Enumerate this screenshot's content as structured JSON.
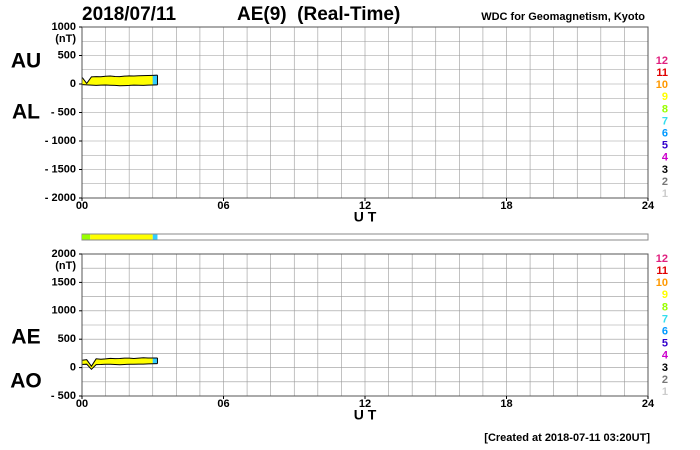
{
  "header": {
    "date": "2018/07/11",
    "title": "AE(9)  (Real-Time)",
    "source": "WDC for Geomagnetism, Kyoto"
  },
  "footer": "[Created at 2018-07-11 03:20UT]",
  "coverage": [
    {
      "from": 0,
      "to": 0.35,
      "color": "#99ff00"
    },
    {
      "from": 0.35,
      "to": 3.0,
      "color": "#ffff00"
    },
    {
      "from": 3.0,
      "to": 3.2,
      "color": "#33ccff"
    }
  ],
  "chart_data": [
    {
      "type": "line",
      "x_label": "U T",
      "y_unit": "(nT)",
      "x": [
        0,
        0.2,
        0.4,
        0.6,
        0.8,
        1.0,
        1.2,
        1.4,
        1.6,
        1.8,
        2.0,
        2.2,
        2.4,
        2.6,
        2.8,
        3.0,
        3.2
      ],
      "series": [
        {
          "name": "AU",
          "color": "#000000",
          "values": [
            120,
            10,
            125,
            130,
            128,
            135,
            140,
            132,
            130,
            138,
            142,
            140,
            145,
            148,
            150,
            152,
            155
          ]
        },
        {
          "name": "AL",
          "color": "#000000",
          "values": [
            -10,
            -15,
            -20,
            -25,
            -20,
            -18,
            -22,
            -25,
            -30,
            -28,
            -25,
            -20,
            -22,
            -25,
            -20,
            -18,
            -15
          ]
        }
      ],
      "fill_bands": [
        {
          "from": 0,
          "to": 3.0,
          "color": "#ffff00"
        },
        {
          "from": 3.0,
          "to": 3.2,
          "color": "#33ccff"
        }
      ],
      "xlim": [
        0,
        24
      ],
      "xticks": [
        {
          "value": 0,
          "label": "00"
        },
        {
          "value": 6,
          "label": "06"
        },
        12,
        18,
        24
      ],
      "ylim": [
        -2000,
        1000
      ],
      "yticks": [
        1000,
        500,
        0,
        {
          "value": -500,
          "label": "- 500"
        },
        {
          "value": -1000,
          "label": "- 1000"
        },
        {
          "value": -1500,
          "label": "- 1500"
        },
        {
          "value": -2000,
          "label": "- 2000"
        }
      ],
      "grid": true,
      "x_grid_step": 1,
      "y_grid_step": 250,
      "station_legend": [
        {
          "label": "12",
          "color": "#e0207f"
        },
        {
          "label": "11",
          "color": "#e00000"
        },
        {
          "label": "10",
          "color": "#ff9900"
        },
        {
          "label": "9",
          "color": "#ffff00"
        },
        {
          "label": "8",
          "color": "#99ff00"
        },
        {
          "label": "7",
          "color": "#33ddee"
        },
        {
          "label": "6",
          "color": "#0099ff"
        },
        {
          "label": "5",
          "color": "#3300cc"
        },
        {
          "label": "4",
          "color": "#cc00cc"
        },
        {
          "label": "3",
          "color": "#000000"
        },
        {
          "label": "2",
          "color": "#777777"
        },
        {
          "label": "1",
          "color": "#cccccc"
        }
      ]
    },
    {
      "type": "line",
      "x_label": "U T",
      "y_unit": "(nT)",
      "x": [
        0,
        0.2,
        0.4,
        0.6,
        0.8,
        1.0,
        1.2,
        1.4,
        1.6,
        1.8,
        2.0,
        2.2,
        2.4,
        2.6,
        2.8,
        3.0,
        3.2
      ],
      "series": [
        {
          "name": "AE",
          "color": "#000000",
          "values": [
            130,
            140,
            25,
            155,
            148,
            153,
            162,
            157,
            160,
            166,
            167,
            160,
            167,
            173,
            170,
            170,
            170
          ]
        },
        {
          "name": "AO",
          "color": "#000000",
          "values": [
            55,
            60,
            -30,
            53,
            54,
            59,
            59,
            54,
            50,
            55,
            59,
            60,
            62,
            62,
            65,
            67,
            70
          ]
        }
      ],
      "fill_bands": [
        {
          "from": 0,
          "to": 3.0,
          "color": "#ffff00"
        },
        {
          "from": 3.0,
          "to": 3.2,
          "color": "#33ccff"
        }
      ],
      "xlim": [
        0,
        24
      ],
      "xticks": [
        {
          "value": 0,
          "label": "00"
        },
        {
          "value": 6,
          "label": "06"
        },
        12,
        18,
        24
      ],
      "ylim": [
        -500,
        2000
      ],
      "yticks": [
        2000,
        1500,
        1000,
        500,
        0,
        {
          "value": -500,
          "label": "- 500"
        }
      ],
      "grid": true,
      "x_grid_step": 1,
      "y_grid_step": 250,
      "station_legend": [
        {
          "label": "12",
          "color": "#e0207f"
        },
        {
          "label": "11",
          "color": "#e00000"
        },
        {
          "label": "10",
          "color": "#ff9900"
        },
        {
          "label": "9",
          "color": "#ffff00"
        },
        {
          "label": "8",
          "color": "#99ff00"
        },
        {
          "label": "7",
          "color": "#33ddee"
        },
        {
          "label": "6",
          "color": "#0099ff"
        },
        {
          "label": "5",
          "color": "#3300cc"
        },
        {
          "label": "4",
          "color": "#cc00cc"
        },
        {
          "label": "3",
          "color": "#000000"
        },
        {
          "label": "2",
          "color": "#777777"
        },
        {
          "label": "1",
          "color": "#cccccc"
        }
      ]
    }
  ]
}
